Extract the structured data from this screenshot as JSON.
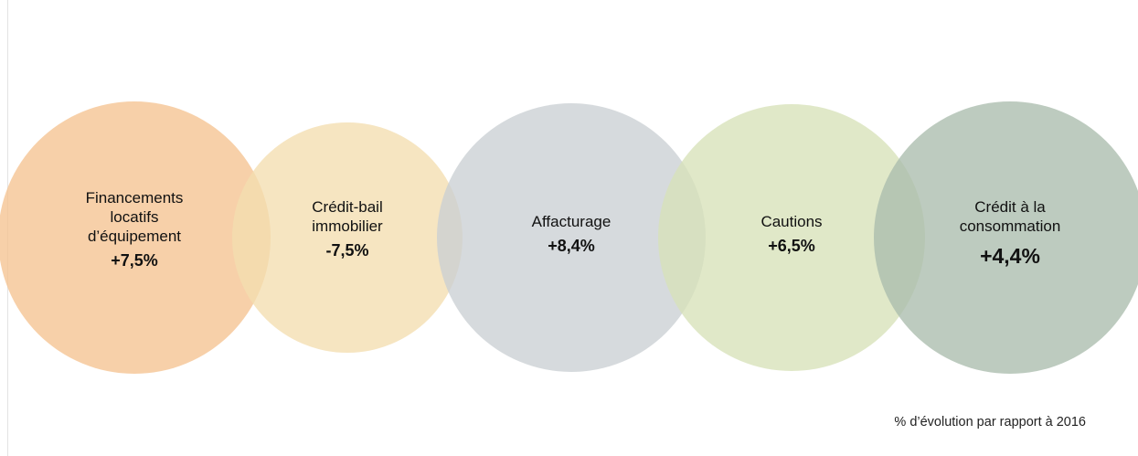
{
  "circles": [
    {
      "lines": [
        "Financements",
        "locatifs",
        "d’équipement"
      ],
      "value": "+7,5%",
      "color": "#f5c391"
    },
    {
      "lines": [
        "Crédit-bail",
        "immobilier"
      ],
      "value": "-7,5%",
      "color": "#f3deb0"
    },
    {
      "lines": [
        "Affacturage"
      ],
      "value": "+8,4%",
      "color": "#cbcfd3"
    },
    {
      "lines": [
        "Cautions"
      ],
      "value": "+6,5%",
      "color": "#d7e2b9"
    },
    {
      "lines": [
        "Crédit à la",
        "consommation"
      ],
      "value": "+4,4%",
      "color": "#aabcad"
    }
  ],
  "footnote": "% d’évolution par rapport à 2016"
}
